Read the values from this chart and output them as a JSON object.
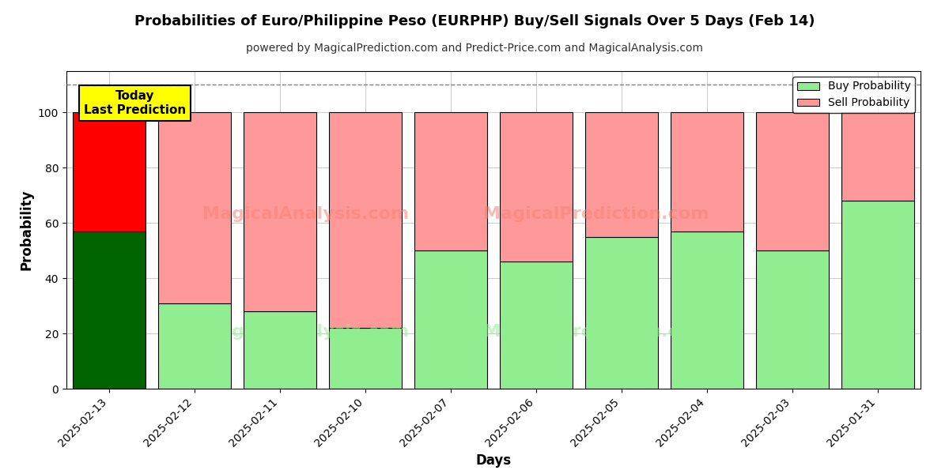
{
  "title": "Probabilities of Euro/Philippine Peso (EURPHP) Buy/Sell Signals Over 5 Days (Feb 14)",
  "subtitle": "powered by MagicalPrediction.com and Predict-Price.com and MagicalAnalysis.com",
  "xlabel": "Days",
  "ylabel": "Probability",
  "dates": [
    "2025-02-13",
    "2025-02-12",
    "2025-02-11",
    "2025-02-10",
    "2025-02-07",
    "2025-02-06",
    "2025-02-05",
    "2025-02-04",
    "2025-02-03",
    "2025-01-31"
  ],
  "buy_values": [
    57,
    31,
    28,
    22,
    50,
    46,
    55,
    57,
    50,
    68
  ],
  "sell_values": [
    43,
    69,
    72,
    78,
    50,
    54,
    45,
    43,
    50,
    32
  ],
  "today_index": 0,
  "today_buy_color": "#006400",
  "today_sell_color": "#FF0000",
  "normal_buy_color": "#90EE90",
  "normal_sell_color": "#FF9999",
  "bar_edge_color": "#000000",
  "ylim": [
    0,
    115
  ],
  "yticks": [
    0,
    20,
    40,
    60,
    80,
    100
  ],
  "dashed_line_y": 110,
  "dashed_line_color": "#808080",
  "legend_buy_color": "#90EE90",
  "legend_sell_color": "#FF9999",
  "today_label_bg": "#FFFF00",
  "today_label_text": "Today\nLast Prediction",
  "background_color": "#FFFFFF",
  "grid_color": "#CCCCCC",
  "title_fontsize": 13,
  "subtitle_fontsize": 10,
  "axis_label_fontsize": 12,
  "tick_fontsize": 10,
  "bar_width": 0.85
}
